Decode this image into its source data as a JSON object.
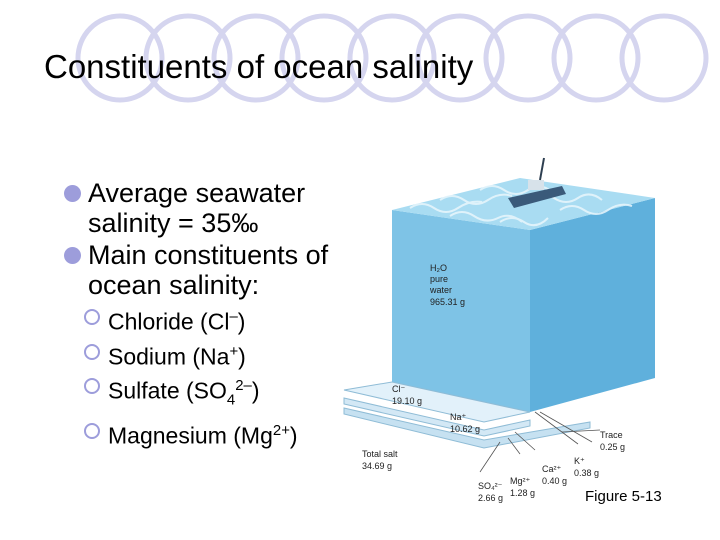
{
  "slide": {
    "title": "Constituents of ocean salinity",
    "bullets": [
      {
        "text": "Average seawater salinity = 35‰"
      },
      {
        "text": "Main constituents of ocean salinity:"
      }
    ],
    "sub_bullets": [
      {
        "label": "Chloride (Cl",
        "sup": "–",
        "after": ")"
      },
      {
        "label": "Sodium (Na",
        "sup": "+",
        "after": ")"
      },
      {
        "label": "Sulfate (SO",
        "sub": "4",
        "sup": "2–",
        "after": ")"
      },
      {
        "label": "Magnesium (Mg",
        "sup": "2+",
        "after": ")"
      }
    ],
    "figure": {
      "water": {
        "l1": "H₂O",
        "l2": "pure",
        "l3": "water",
        "l4": "965.31 g"
      },
      "chloride": {
        "l1": "Cl⁻",
        "l2": "19.10 g"
      },
      "sodium": {
        "l1": "Na⁺",
        "l2": "10.62 g"
      },
      "total": {
        "l1": "Total salt",
        "l2": "34.69 g"
      },
      "trace": {
        "l1": "Trace",
        "l2": "0.25 g"
      },
      "potassium": {
        "l1": "K⁺",
        "l2": "0.38 g"
      },
      "calcium": {
        "l1": "Ca²⁺",
        "l2": "0.40 g"
      },
      "magnesium": {
        "l1": "Mg²⁺",
        "l2": "1.28 g"
      },
      "sulfate": {
        "l1": "SO₄²⁻",
        "l2": "2.66 g"
      }
    },
    "caption": "Figure 5-13",
    "colors": {
      "accent": "#9d9ddb",
      "water_top": "#9fd4ee",
      "water_side": "#5fb0dc",
      "water_front": "#7ec3e6"
    }
  }
}
